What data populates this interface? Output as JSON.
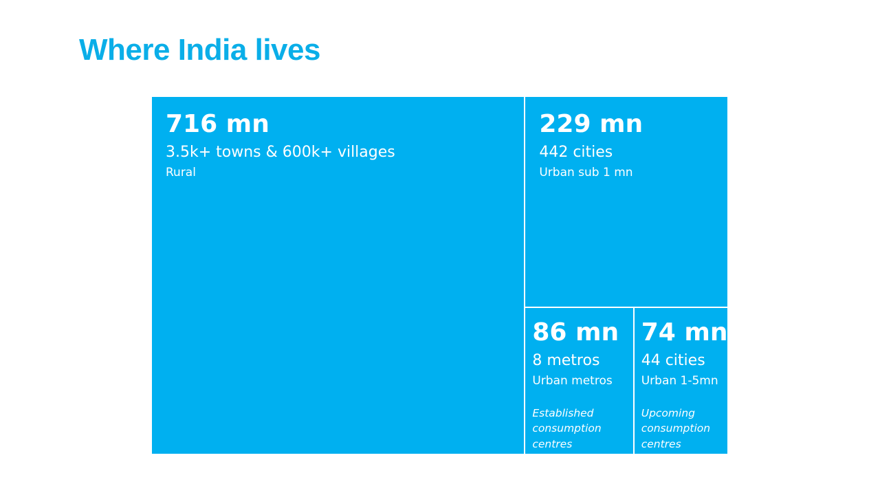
{
  "slide": {
    "title": "Where India lives"
  },
  "colors": {
    "title": "#0aaee8",
    "tile_fill": "#00b0f0",
    "tile_text": "#ffffff",
    "tile_border": "#ffffff"
  },
  "chart_data": {
    "type": "treemap",
    "title": "Where India lives",
    "unit": "mn",
    "items": [
      {
        "key": "rural",
        "value": 716,
        "value_label": "716 mn",
        "count_label": "3.5k+ towns & 600k+ villages",
        "category": "Rural",
        "note": ""
      },
      {
        "key": "sub1",
        "value": 229,
        "value_label": "229 mn",
        "count_label": "442 cities",
        "category": "Urban sub 1 mn",
        "note": ""
      },
      {
        "key": "metros",
        "value": 86,
        "value_label": "86 mn",
        "count_label": "8 metros",
        "category": "Urban metros",
        "note": "Established consumption centres"
      },
      {
        "key": "tier",
        "value": 74,
        "value_label": "74 mn",
        "count_label": "44 cities",
        "category": "Urban 1-5mn",
        "note": "Upcoming consumption centres"
      }
    ]
  }
}
